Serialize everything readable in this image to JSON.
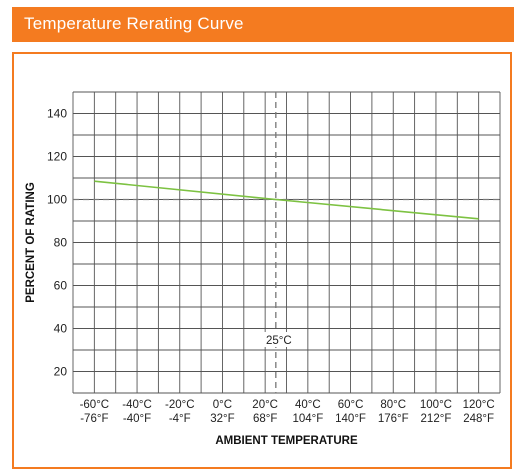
{
  "header": {
    "title": "Temperature Rerating Curve"
  },
  "colors": {
    "accent": "#f47b20",
    "curve": "#7dc242",
    "grid": "#555555",
    "reference": "#777777"
  },
  "chart_data": {
    "type": "line",
    "title": "",
    "ylabel": "PERCENT OF RATING",
    "xlabel": "AMBIENT TEMPERATURE",
    "xlim": [
      -70,
      130
    ],
    "ylim": [
      10,
      150
    ],
    "grid": true,
    "yticks": [
      "20",
      "40",
      "60",
      "80",
      "100",
      "120",
      "140"
    ],
    "xticks": [
      {
        "c": "-60°C",
        "f": "-76°F"
      },
      {
        "c": "-40°C",
        "f": "-40°F"
      },
      {
        "c": "-20°C",
        "f": "-4°F"
      },
      {
        "c": "0°C",
        "f": "32°F"
      },
      {
        "c": "20°C",
        "f": "68°F"
      },
      {
        "c": "40°C",
        "f": "104°F"
      },
      {
        "c": "60°C",
        "f": "140°F"
      },
      {
        "c": "80°C",
        "f": "176°F"
      },
      {
        "c": "100°C",
        "f": "212°F"
      },
      {
        "c": "120°C",
        "f": "248°F"
      }
    ],
    "series": [
      {
        "x": [
          -60,
          25,
          120
        ],
        "y": [
          108.5,
          100,
          91
        ]
      }
    ],
    "reference_x": 25,
    "reference_y": 100,
    "annotation": "25°C"
  }
}
